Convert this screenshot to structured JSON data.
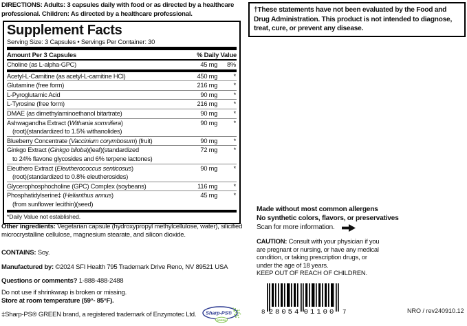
{
  "directions": {
    "label": "DIRECTIONS:",
    "text": "Adults: 3 capsules daily with food or as directed by a healthcare professional. Children: As directed by a healthcare professional."
  },
  "supplement_facts": {
    "title": "Supplement Facts",
    "serving_line": "Serving Size: 3 Capsules • Servings Per Container: 30",
    "header": {
      "amount": "Amount Per 3 Capsules",
      "daily_value": "% Daily Value"
    },
    "rows": [
      {
        "name": [
          {
            "text": "Choline (as L-alpha-GPC)"
          }
        ],
        "amount": "45 mg",
        "dv": "8%",
        "divider": "thick"
      },
      {
        "name": [
          {
            "text": "Acetyl-L-Carnitine (as acetyl-L-carnitine HCl)"
          }
        ],
        "amount": "450 mg",
        "dv": "*"
      },
      {
        "name": [
          {
            "text": "Glutamine (free form)"
          }
        ],
        "amount": "216 mg",
        "dv": "*"
      },
      {
        "name": [
          {
            "text": "L-Pyroglutamic Acid"
          }
        ],
        "amount": "90 mg",
        "dv": "*"
      },
      {
        "name": [
          {
            "text": "L-Tyrosine (free form)"
          }
        ],
        "amount": "216 mg",
        "dv": "*"
      },
      {
        "name": [
          {
            "text": "DMAE (as dimethylaminoethanol bitartrate)"
          }
        ],
        "amount": "90 mg",
        "dv": "*"
      },
      {
        "name": [
          {
            "text": "Ashwagandha Extract ("
          },
          {
            "text": "Withania somnifera",
            "italic": true
          },
          {
            "text": ")"
          }
        ],
        "line2": "(root)(standardized to 1.5% withanolides)",
        "amount": "90 mg",
        "dv": "*"
      },
      {
        "name": [
          {
            "text": "Blueberry Concentrate ("
          },
          {
            "text": "Vaccinium corymbosum",
            "italic": true
          },
          {
            "text": ") (fruit)"
          }
        ],
        "amount": "90 mg",
        "dv": "*"
      },
      {
        "name": [
          {
            "text": "Ginkgo Extract ("
          },
          {
            "text": "Ginkgo biloba",
            "italic": true
          },
          {
            "text": ")(leaf)(standardized"
          }
        ],
        "line2": "to 24% flavone glycosides and 6% terpene lactones)",
        "amount": "72 mg",
        "dv": "*"
      },
      {
        "name": [
          {
            "text": "Eleuthero Extract ("
          },
          {
            "text": "Eleutherococcus senticosus",
            "italic": true
          },
          {
            "text": ")"
          }
        ],
        "line2": "(root)(standardized to 0.8% eleutherosides)",
        "amount": "90 mg",
        "dv": "*"
      },
      {
        "name": [
          {
            "text": "Glycerophosphocholine (GPC) Complex (soybeans)"
          }
        ],
        "amount": "116 mg",
        "dv": "*"
      },
      {
        "name": [
          {
            "text": "Phosphatidylserine‡ ("
          },
          {
            "text": "Helianthus annus",
            "italic": true
          },
          {
            "text": ")"
          }
        ],
        "line2": "(from sunflower lecithin)(seed)",
        "amount": "45 mg",
        "dv": "*",
        "last": true
      }
    ],
    "footnote": "*Daily Value not established."
  },
  "other_ingredients": {
    "label": "Other ingredients:",
    "text": "Vegetarian capsule (hydroxypropyl methylcellulose, water), silicified microcrystalline cellulose, magnesium stearate, and silicon dioxide."
  },
  "contains": {
    "label": "CONTAINS:",
    "text": "Soy."
  },
  "manufactured": {
    "label": "Manufactured by:",
    "text": "©2024 SFI Health 795 Trademark Drive Reno, NV 89521 USA"
  },
  "questions": {
    "label": "Questions or comments?",
    "text": "1-888-488-2488"
  },
  "storage": {
    "line1": "Do not use if shrinkwrap is broken or missing.",
    "line2": "Store at room temperature (59°- 85°F)."
  },
  "trademark": {
    "text": "‡Sharp-PS® GREEN brand, a registered trademark of Enzymotec Ltd.",
    "logo_primary": "Sharp-PS®",
    "logo_secondary": "GREEN"
  },
  "fda_notice": {
    "text": "†These statements have not been evaluated by the Food and Drug Administration. This product is not intended to diagnose, treat, cure, or prevent any disease."
  },
  "claims": {
    "line1": "Made without most common allergens",
    "line2": "No synthetic colors, flavors, or preservatives",
    "scan": "Scan for more information."
  },
  "caution": {
    "label": "CAUTION:",
    "text": "Consult with your physician if you are pregnant or nursing, or have any medical condition, or taking prescription drugs, or under the age of 18 years.",
    "keep_out": "KEEP OUT OF REACH OF CHILDREN."
  },
  "barcode": {
    "left_digit": "8",
    "group1": "28054",
    "group2": "01100",
    "right_digit": "7"
  },
  "revision": "NRO / rev240910.12",
  "colors": {
    "text": "#111111",
    "hairline": "#888888",
    "logo_navy": "#2b3990",
    "logo_green": "#7ac143"
  }
}
